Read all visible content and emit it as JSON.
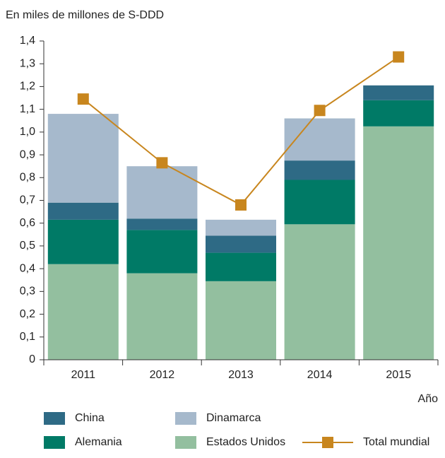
{
  "chart_data": {
    "type": "bar",
    "stacked": true,
    "y_label": "En miles de millones de S-DDD",
    "x_label": "Año",
    "categories": [
      "2011",
      "2012",
      "2013",
      "2014",
      "2015"
    ],
    "series": [
      {
        "name": "Estados Unidos",
        "color": "#93bf9f",
        "values": [
          0.42,
          0.38,
          0.345,
          0.595,
          1.025
        ]
      },
      {
        "name": "Alemania",
        "color": "#007a66",
        "values": [
          0.195,
          0.19,
          0.125,
          0.195,
          0.115
        ]
      },
      {
        "name": "China",
        "color": "#2e6a85",
        "values": [
          0.075,
          0.05,
          0.075,
          0.085,
          0.065
        ]
      },
      {
        "name": "Dinamarca",
        "color": "#a6b9cc",
        "values": [
          0.39,
          0.23,
          0.07,
          0.185,
          0
        ]
      },
      {
        "name": "Total mundial",
        "type": "line",
        "color": "#c8861e",
        "values": [
          1.145,
          0.865,
          0.68,
          1.095,
          1.33
        ]
      }
    ],
    "ylim": [
      0,
      1.4
    ],
    "yticks": [
      0,
      {
        "value": 0.1,
        "label": "0,1"
      },
      {
        "value": 0.2,
        "label": "0,2"
      },
      {
        "value": 0.3,
        "label": "0,3"
      },
      {
        "value": 0.4,
        "label": "0,4"
      },
      {
        "value": 0.5,
        "label": "0,5"
      },
      {
        "value": 0.6,
        "label": "0,6"
      },
      {
        "value": 0.7,
        "label": "0,7"
      },
      {
        "value": 0.8,
        "label": "0,8"
      },
      {
        "value": 0.9,
        "label": "0,9"
      },
      {
        "value": 1.0,
        "label": "1,0"
      },
      {
        "value": 1.1,
        "label": "1,1"
      },
      {
        "value": 1.2,
        "label": "1,2"
      },
      {
        "value": 1.3,
        "label": "1,3"
      },
      {
        "value": 1.4,
        "label": "1,4"
      }
    ]
  }
}
